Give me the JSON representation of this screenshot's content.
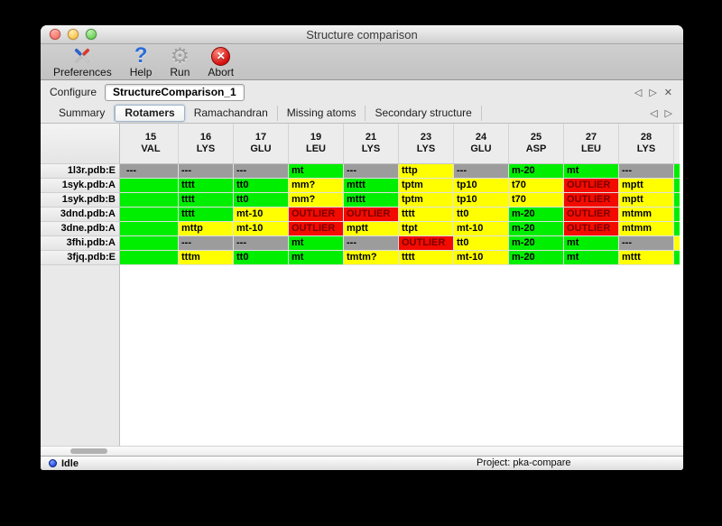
{
  "window": {
    "title": "Structure comparison"
  },
  "toolbar": {
    "items": [
      {
        "label": "Preferences"
      },
      {
        "label": "Help"
      },
      {
        "label": "Run"
      },
      {
        "label": "Abort"
      }
    ]
  },
  "icons": {
    "question": "?",
    "gear": "⚙",
    "abort_x": "✕",
    "back": "◁",
    "forward": "▷",
    "close": "✕"
  },
  "configure": {
    "label": "Configure",
    "value": "StructureComparison_1"
  },
  "tabs": {
    "items": [
      {
        "label": "Summary"
      },
      {
        "label": "Rotamers"
      },
      {
        "label": "Ramachandran"
      },
      {
        "label": "Missing atoms"
      },
      {
        "label": "Secondary structure"
      }
    ],
    "active": "Rotamers"
  },
  "colors": {
    "green": "#00ee00",
    "yellow": "#ffff00",
    "red": "#f30b00",
    "gray": "#9c9c9c",
    "red_text": "#7a0000"
  },
  "table": {
    "columns": [
      {
        "num": "15",
        "res": "VAL"
      },
      {
        "num": "16",
        "res": "LYS"
      },
      {
        "num": "17",
        "res": "GLU"
      },
      {
        "num": "19",
        "res": "LEU"
      },
      {
        "num": "21",
        "res": "LYS"
      },
      {
        "num": "23",
        "res": "LYS"
      },
      {
        "num": "24",
        "res": "GLU"
      },
      {
        "num": "25",
        "res": "ASP"
      },
      {
        "num": "27",
        "res": "LEU"
      },
      {
        "num": "28",
        "res": "LYS"
      }
    ],
    "rows": [
      {
        "label": "1l3r.pdb:E",
        "left": "gray",
        "right": "green",
        "cells": [
          {
            "t": "---",
            "c": "gray"
          },
          {
            "t": "---",
            "c": "gray"
          },
          {
            "t": "---",
            "c": "gray"
          },
          {
            "t": "mt",
            "c": "green"
          },
          {
            "t": "---",
            "c": "gray"
          },
          {
            "t": "tttp",
            "c": "yellow"
          },
          {
            "t": "---",
            "c": "gray"
          },
          {
            "t": "m-20",
            "c": "green"
          },
          {
            "t": "mt",
            "c": "green"
          },
          {
            "t": "---",
            "c": "gray"
          }
        ]
      },
      {
        "label": "1syk.pdb:A",
        "left": "green",
        "right": "green",
        "cells": [
          {
            "t": "",
            "c": "green"
          },
          {
            "t": "tttt",
            "c": "green"
          },
          {
            "t": "tt0",
            "c": "green"
          },
          {
            "t": "mm?",
            "c": "yellow"
          },
          {
            "t": "mttt",
            "c": "green"
          },
          {
            "t": "tptm",
            "c": "yellow"
          },
          {
            "t": "tp10",
            "c": "yellow"
          },
          {
            "t": "t70",
            "c": "yellow"
          },
          {
            "t": "OUTLIER",
            "c": "red"
          },
          {
            "t": "mptt",
            "c": "yellow"
          }
        ]
      },
      {
        "label": "1syk.pdb:B",
        "left": "green",
        "right": "green",
        "cells": [
          {
            "t": "",
            "c": "green"
          },
          {
            "t": "tttt",
            "c": "green"
          },
          {
            "t": "tt0",
            "c": "green"
          },
          {
            "t": "mm?",
            "c": "yellow"
          },
          {
            "t": "mttt",
            "c": "green"
          },
          {
            "t": "tptm",
            "c": "yellow"
          },
          {
            "t": "tp10",
            "c": "yellow"
          },
          {
            "t": "t70",
            "c": "yellow"
          },
          {
            "t": "OUTLIER",
            "c": "red"
          },
          {
            "t": "mptt",
            "c": "yellow"
          }
        ]
      },
      {
        "label": "3dnd.pdb:A",
        "left": "green",
        "right": "green",
        "cells": [
          {
            "t": "",
            "c": "green"
          },
          {
            "t": "tttt",
            "c": "green"
          },
          {
            "t": "mt-10",
            "c": "yellow"
          },
          {
            "t": "OUTLIER",
            "c": "red"
          },
          {
            "t": "OUTLIER",
            "c": "red"
          },
          {
            "t": "tttt",
            "c": "yellow"
          },
          {
            "t": "tt0",
            "c": "yellow"
          },
          {
            "t": "m-20",
            "c": "green"
          },
          {
            "t": "OUTLIER",
            "c": "red"
          },
          {
            "t": "mtmm",
            "c": "yellow"
          }
        ]
      },
      {
        "label": "3dne.pdb:A",
        "left": "green",
        "right": "green",
        "cells": [
          {
            "t": "",
            "c": "green"
          },
          {
            "t": "mttp",
            "c": "yellow"
          },
          {
            "t": "mt-10",
            "c": "yellow"
          },
          {
            "t": "OUTLIER",
            "c": "red"
          },
          {
            "t": "mptt",
            "c": "yellow"
          },
          {
            "t": "ttpt",
            "c": "yellow"
          },
          {
            "t": "mt-10",
            "c": "yellow"
          },
          {
            "t": "m-20",
            "c": "green"
          },
          {
            "t": "OUTLIER",
            "c": "red"
          },
          {
            "t": "mtmm",
            "c": "yellow"
          }
        ]
      },
      {
        "label": "3fhi.pdb:A",
        "left": "green",
        "right": "yellow",
        "cells": [
          {
            "t": "",
            "c": "green"
          },
          {
            "t": "---",
            "c": "gray"
          },
          {
            "t": "---",
            "c": "gray"
          },
          {
            "t": "mt",
            "c": "green"
          },
          {
            "t": "---",
            "c": "gray"
          },
          {
            "t": "OUTLIER",
            "c": "red"
          },
          {
            "t": "tt0",
            "c": "yellow"
          },
          {
            "t": "m-20",
            "c": "green"
          },
          {
            "t": "mt",
            "c": "green"
          },
          {
            "t": "---",
            "c": "gray"
          }
        ]
      },
      {
        "label": "3fjq.pdb:E",
        "left": "green",
        "right": "green",
        "cells": [
          {
            "t": "",
            "c": "green"
          },
          {
            "t": "tttm",
            "c": "yellow"
          },
          {
            "t": "tt0",
            "c": "green"
          },
          {
            "t": "mt",
            "c": "green"
          },
          {
            "t": "tmtm?",
            "c": "yellow"
          },
          {
            "t": "tttt",
            "c": "yellow"
          },
          {
            "t": "mt-10",
            "c": "yellow"
          },
          {
            "t": "m-20",
            "c": "green"
          },
          {
            "t": "mt",
            "c": "green"
          },
          {
            "t": "mttt",
            "c": "yellow"
          }
        ]
      }
    ]
  },
  "status": {
    "state": "Idle",
    "project": "Project: pka-compare"
  }
}
